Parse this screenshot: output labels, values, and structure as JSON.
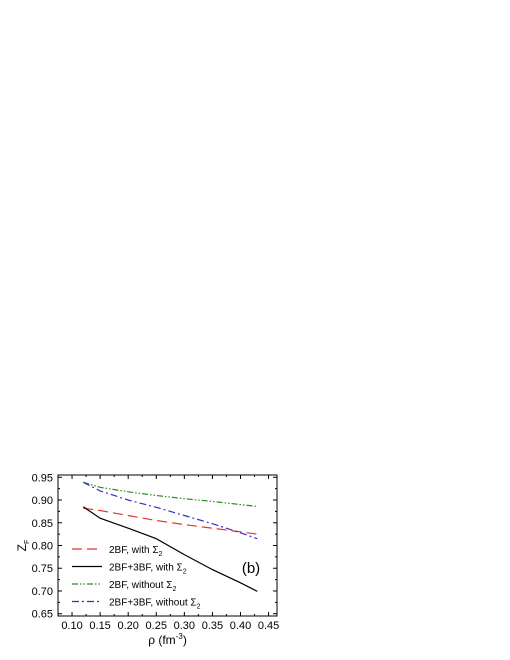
{
  "chart_data": {
    "type": "line",
    "panel_label": "(b)",
    "xlabel": "ρ (fm",
    "xlabel_sup": "-3",
    "xlabel_tail": ")",
    "ylabel": "Z",
    "ylabel_sub": "F",
    "xlim": [
      0.075,
      0.465
    ],
    "ylim": [
      0.645,
      0.955
    ],
    "x_ticks": [
      0.1,
      0.15,
      0.2,
      0.25,
      0.3,
      0.35,
      0.4,
      0.45
    ],
    "x_tick_labels": [
      "0.10",
      "0.15",
      "0.20",
      "0.25",
      "0.30",
      "0.35",
      "0.40",
      "0.45"
    ],
    "y_ticks": [
      0.65,
      0.7,
      0.75,
      0.8,
      0.85,
      0.9,
      0.95
    ],
    "y_tick_labels": [
      "0.65",
      "0.70",
      "0.75",
      "0.80",
      "0.85",
      "0.90",
      "0.95"
    ],
    "grid": false,
    "legend_position": "bottom-left",
    "series": [
      {
        "name": "2BF, with Σ",
        "name_sub": "2",
        "color": "#e8322c",
        "style": "dashed",
        "x": [
          0.12,
          0.15,
          0.2,
          0.25,
          0.3,
          0.35,
          0.4,
          0.43
        ],
        "y": [
          0.882,
          0.877,
          0.866,
          0.855,
          0.846,
          0.838,
          0.83,
          0.825
        ]
      },
      {
        "name": "2BF+3BF, with Σ",
        "name_sub": "2",
        "color": "#000000",
        "style": "solid",
        "x": [
          0.12,
          0.15,
          0.2,
          0.25,
          0.3,
          0.35,
          0.4,
          0.43
        ],
        "y": [
          0.885,
          0.86,
          0.838,
          0.815,
          0.78,
          0.747,
          0.718,
          0.699
        ]
      },
      {
        "name": "2BF, without Σ",
        "name_sub": "2",
        "color": "#2a8a2a",
        "style": "dashdotdot",
        "x": [
          0.12,
          0.15,
          0.2,
          0.25,
          0.3,
          0.35,
          0.4,
          0.43
        ],
        "y": [
          0.939,
          0.928,
          0.918,
          0.91,
          0.903,
          0.897,
          0.89,
          0.886
        ]
      },
      {
        "name": "2BF+3BF, without Σ",
        "name_sub": "2",
        "color": "#3030d0",
        "style": "dashdot",
        "x": [
          0.12,
          0.15,
          0.2,
          0.25,
          0.3,
          0.35,
          0.4,
          0.43
        ],
        "y": [
          0.939,
          0.92,
          0.9,
          0.884,
          0.866,
          0.848,
          0.828,
          0.815
        ]
      }
    ]
  }
}
